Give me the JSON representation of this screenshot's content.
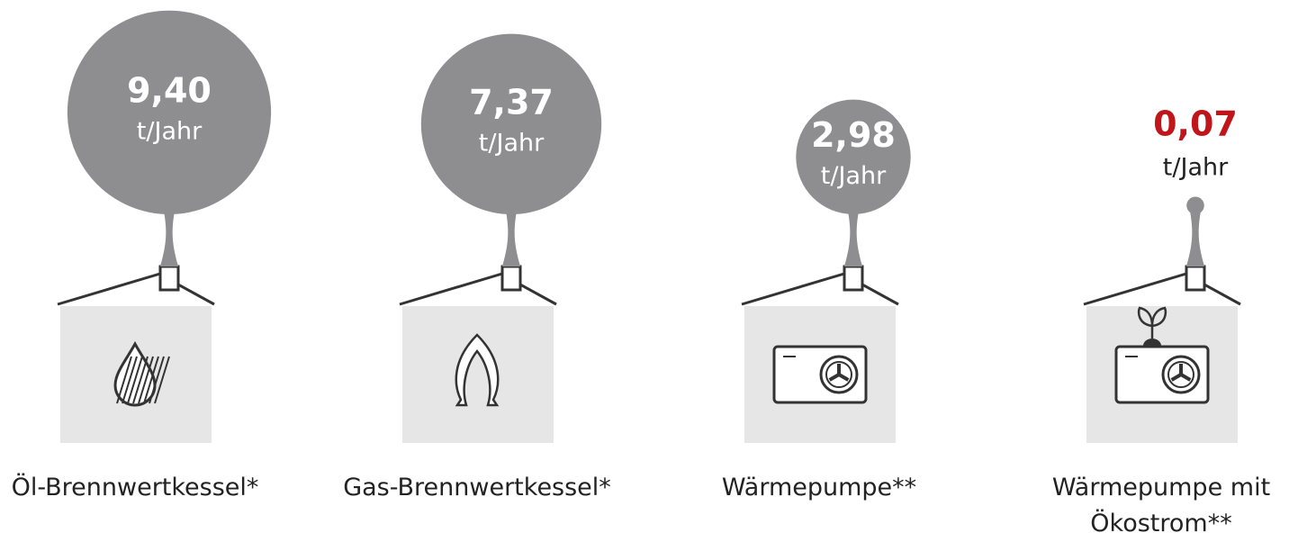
{
  "chart_data": {
    "type": "bubble",
    "categories": [
      "Öl-Brennwertkessel*",
      "Gas-Brennwertkessel*",
      "Wärmepumpe**",
      "Wärmepumpe mit Ökostrom**"
    ],
    "values": [
      9.4,
      7.37,
      2.98,
      0.07
    ],
    "value_labels": [
      "9,40",
      "7,37",
      "2,98",
      "0,07"
    ],
    "unit": "t/Jahr",
    "color": "#8e8e90",
    "value_label_colors": [
      "#ffffff",
      "#ffffff",
      "#ffffff",
      "#c0161b"
    ]
  }
}
